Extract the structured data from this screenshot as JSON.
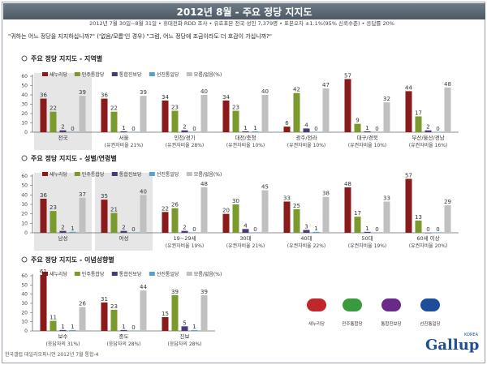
{
  "header": {
    "title": "2012년 8월 - 주요 정당 지지도"
  },
  "subheader": "2012년 7월 30일~8월 31일 • 휴대전화 RDD 조사 • 유효표본 전국 성인 7,379명 • 표본오차 ±1.1%(95% 신뢰수준) • 응답률 20%",
  "question": "\"귀하는 어느 정당을 지지하십니까?\" ('없음/모름'인 경우) \"그럼, 어느 정당에 조금이라도 더 호감이 가십니까?\"",
  "colors": {
    "series": [
      "#8b1a1a",
      "#7a9a2e",
      "#4a3a78",
      "#5aa0c8",
      "#c0c0c0"
    ],
    "shade": "#e6e6e6"
  },
  "chart_data": [
    {
      "type": "bar",
      "title": "주요 정당 지지도 - 지역별",
      "ylim": [
        0,
        60
      ],
      "yticks": [
        0,
        10,
        20,
        30,
        40,
        50,
        60
      ],
      "legend": [
        "새누리당",
        "민주통합당",
        "통합진보당",
        "선진통일당",
        "모름/없음(%)"
      ],
      "categories": [
        "전국",
        "서울",
        "인천/경기",
        "대전/충청",
        "광주/전라",
        "대구/경북",
        "부산/울산/경남"
      ],
      "subs": [
        "",
        "(유권자비율 21%)",
        "(유권자비율 28%)",
        "(유권자비율 10%)",
        "(유권자비율 10%)",
        "(유권자비율 10%)",
        "(유권자비율 16%)"
      ],
      "shaded": [
        0
      ],
      "series": [
        {
          "name": "새누리당",
          "values": [
            36,
            36,
            34,
            34,
            6,
            57,
            44
          ]
        },
        {
          "name": "민주통합당",
          "values": [
            22,
            22,
            23,
            23,
            42,
            9,
            17
          ]
        },
        {
          "name": "통합진보당",
          "values": [
            2,
            1,
            2,
            1,
            4,
            1,
            2
          ]
        },
        {
          "name": "선진통일당",
          "values": [
            0,
            0,
            0,
            1,
            0,
            0,
            0
          ]
        },
        {
          "name": "모름/없음(%)",
          "values": [
            39,
            39,
            40,
            40,
            47,
            32,
            48
          ]
        }
      ]
    },
    {
      "type": "bar",
      "title": "주요 정당 지지도 - 성별/연령별",
      "ylim": [
        0,
        60
      ],
      "yticks": [
        0,
        10,
        20,
        30,
        40,
        50,
        60
      ],
      "legend": [
        "새누리당",
        "민주통합당",
        "통합진보당",
        "선진통일당",
        "모름/없음(%)"
      ],
      "categories": [
        "남성",
        "여성",
        "19~29세",
        "30대",
        "40대",
        "50대",
        "60세 이상"
      ],
      "subs": [
        "",
        "",
        "(유권자비율 19%)",
        "(유권자비율 21%)",
        "(유권자비율 22%)",
        "(유권자비율 19%)",
        "(유권자비율 20%)"
      ],
      "shaded": [
        0,
        1
      ],
      "series": [
        {
          "name": "새누리당",
          "values": [
            36,
            35,
            22,
            20,
            33,
            48,
            57
          ]
        },
        {
          "name": "민주통합당",
          "values": [
            23,
            21,
            26,
            30,
            25,
            17,
            13
          ]
        },
        {
          "name": "통합진보당",
          "values": [
            2,
            2,
            2,
            4,
            3,
            1,
            0
          ]
        },
        {
          "name": "선진통일당",
          "values": [
            1,
            0,
            0,
            0,
            1,
            0,
            0
          ]
        },
        {
          "name": "모름/없음(%)",
          "values": [
            37,
            40,
            48,
            45,
            38,
            33,
            29
          ]
        }
      ]
    },
    {
      "type": "bar",
      "title": "주요 정당 지지도 - 이념성향별",
      "ylim": [
        0,
        60
      ],
      "yticks": [
        0,
        10,
        20,
        30,
        40,
        50,
        60
      ],
      "legend": [
        "새누리당",
        "민주통합당",
        "통합진보당",
        "선진통일당",
        "모름/없음(%)"
      ],
      "categories": [
        "보수",
        "중도",
        "진보"
      ],
      "subs": [
        "(응답자의 31%)",
        "(응답자의 28%)",
        "(응답자의 28%)"
      ],
      "shaded": [],
      "series": [
        {
          "name": "새누리당",
          "values": [
            61,
            31,
            15
          ]
        },
        {
          "name": "민주통합당",
          "values": [
            11,
            23,
            39
          ]
        },
        {
          "name": "통합진보당",
          "values": [
            1,
            1,
            5
          ]
        },
        {
          "name": "선진통일당",
          "values": [
            1,
            0,
            1
          ]
        },
        {
          "name": "모름/없음(%)",
          "values": [
            26,
            44,
            39
          ]
        }
      ]
    }
  ],
  "logos": [
    {
      "label": "새누리당",
      "color": "#c0272d"
    },
    {
      "label": "민주통합당",
      "color": "#3a9a3e"
    },
    {
      "label": "통합진보당",
      "color": "#6a2a8a"
    },
    {
      "label": "선진통일당",
      "color": "#1e4e9a"
    }
  ],
  "brand": {
    "name": "Gallup",
    "sub": "KOREA"
  },
  "footer": "한국갤럽 데일리오피니언 2012년 7월 통합-4"
}
